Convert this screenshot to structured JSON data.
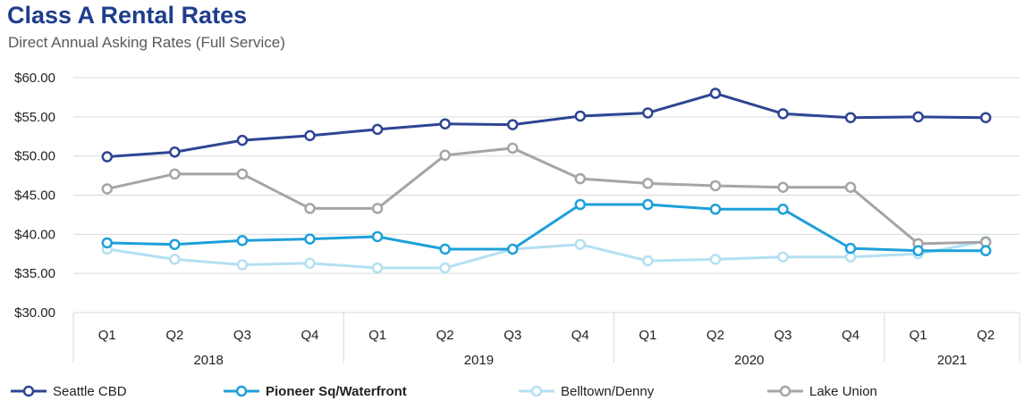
{
  "chart_data": {
    "type": "line",
    "title": "Class A Rental Rates",
    "subtitle": "Direct Annual Asking Rates (Full Service)",
    "xlabel": "",
    "ylabel": "",
    "ylim": [
      30,
      60
    ],
    "yticks": [
      60,
      55,
      50,
      45,
      40,
      35,
      30
    ],
    "ytick_labels": [
      "$60.00",
      "$55.00",
      "$50.00",
      "$45.00",
      "$40.00",
      "$35.00",
      "$30.00"
    ],
    "categories": [
      "Q1",
      "Q2",
      "Q3",
      "Q4",
      "Q1",
      "Q2",
      "Q3",
      "Q4",
      "Q1",
      "Q2",
      "Q3",
      "Q4",
      "Q1",
      "Q2"
    ],
    "years": [
      {
        "label": "2018",
        "count": 4
      },
      {
        "label": "2019",
        "count": 4
      },
      {
        "label": "2020",
        "count": 4
      },
      {
        "label": "2021",
        "count": 2
      }
    ],
    "legend_position": "bottom",
    "series": [
      {
        "name": "Seattle CBD",
        "color": "#2e4593",
        "bold": false,
        "values": [
          49.9,
          50.5,
          52.0,
          52.6,
          53.4,
          54.1,
          54.0,
          55.1,
          55.5,
          58.0,
          55.4,
          54.9,
          55.0,
          54.9
        ]
      },
      {
        "name": "Pioneer Sq/Waterfront",
        "color": "#1ea0d8",
        "bold": true,
        "values": [
          38.9,
          38.7,
          39.2,
          39.4,
          39.7,
          38.1,
          38.1,
          43.8,
          43.8,
          43.2,
          43.2,
          38.2,
          37.9,
          37.9
        ]
      },
      {
        "name": "Belltown/Denny",
        "color": "#b4e0f2",
        "bold": false,
        "values": [
          38.1,
          36.8,
          36.1,
          36.3,
          35.7,
          35.7,
          38.1,
          38.7,
          36.6,
          36.8,
          37.1,
          37.1,
          37.5,
          39.1
        ]
      },
      {
        "name": "Lake Union",
        "color": "#a5a5a5",
        "bold": false,
        "values": [
          45.8,
          47.7,
          47.7,
          43.3,
          43.3,
          50.1,
          51.0,
          47.1,
          46.5,
          46.2,
          46.0,
          46.0,
          38.8,
          39.0
        ]
      }
    ]
  }
}
